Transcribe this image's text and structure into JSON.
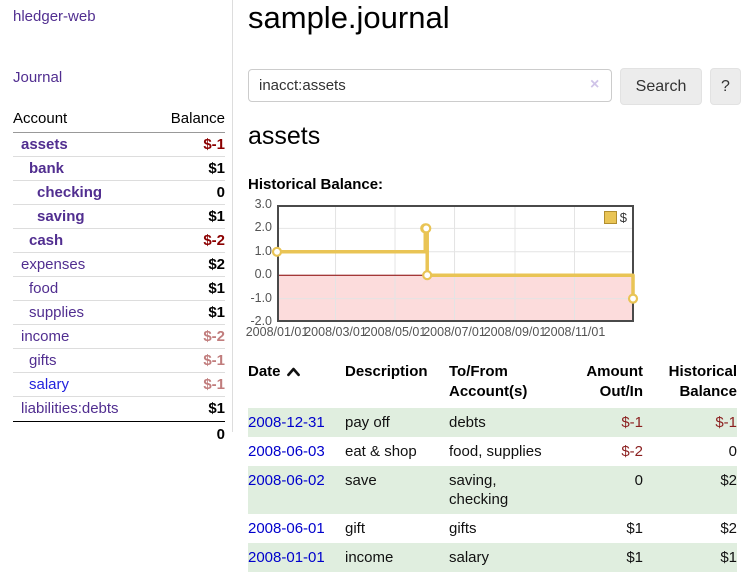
{
  "sidebar": {
    "brand": "hledger-web",
    "journal_link": "Journal",
    "accounts": {
      "account_header": "Account",
      "balance_header": "Balance",
      "rows": [
        {
          "name": "assets",
          "level": 1,
          "bold": true,
          "balance": "$-1"
        },
        {
          "name": "bank",
          "level": 2,
          "bold": true,
          "balance": "$1"
        },
        {
          "name": "checking",
          "level": 3,
          "bold": true,
          "balance": "0"
        },
        {
          "name": "saving",
          "level": 3,
          "bold": true,
          "balance": "$1"
        },
        {
          "name": "cash",
          "level": 2,
          "bold": true,
          "balance": "$-2"
        },
        {
          "name": "expenses",
          "level": 1,
          "bold": false,
          "balance": "$2"
        },
        {
          "name": "food",
          "level": 2,
          "bold": false,
          "balance": "$1"
        },
        {
          "name": "supplies",
          "level": 2,
          "bold": false,
          "balance": "$1"
        },
        {
          "name": "income",
          "level": 1,
          "bold": false,
          "balance": "$-2"
        },
        {
          "name": "gifts",
          "level": 2,
          "bold": false,
          "balance": "$-1"
        },
        {
          "name": "salary",
          "level": 2,
          "bold": false,
          "balance": "$-1",
          "link": "unvisited"
        },
        {
          "name": "liabilities:debts",
          "level": 1,
          "bold": false,
          "balance": "$1"
        }
      ],
      "total": "0"
    }
  },
  "main": {
    "title": "sample.journal",
    "search": {
      "value": "inacct:assets",
      "clear_icon": "×",
      "search_button": "Search",
      "help_button": "?"
    },
    "account_heading": "assets",
    "chart_title": "Historical Balance:"
  },
  "chart_data": {
    "type": "line",
    "title": "Historical Balance:",
    "x_range": [
      "2008-01-01",
      "2009-01-01"
    ],
    "y_range": [
      -2,
      3
    ],
    "grid": true,
    "legend_position": "top-right",
    "y_ticks": [
      {
        "value": 3,
        "label": "3.0"
      },
      {
        "value": 2,
        "label": "2.0"
      },
      {
        "value": 1,
        "label": "1.0"
      },
      {
        "value": 0,
        "label": "0.0"
      },
      {
        "value": -1,
        "label": "-1.0"
      },
      {
        "value": -2,
        "label": "-2.0"
      }
    ],
    "x_ticks": [
      {
        "date": "2008-01-01",
        "label": "2008/01/01"
      },
      {
        "date": "2008-03-01",
        "label": "2008/03/01"
      },
      {
        "date": "2008-05-01",
        "label": "2008/05/01"
      },
      {
        "date": "2008-07-01",
        "label": "2008/07/01"
      },
      {
        "date": "2008-09-01",
        "label": "2008/09/01"
      },
      {
        "date": "2008-11-01",
        "label": "2008/11/01"
      }
    ],
    "series": [
      {
        "name": "$",
        "color": "#e9c455",
        "steps": true,
        "marker": "circle",
        "points": [
          [
            "2008-01-01",
            1
          ],
          [
            "2008-06-01",
            2
          ],
          [
            "2008-06-02",
            2
          ],
          [
            "2008-06-03",
            0
          ],
          [
            "2008-12-31",
            -1
          ]
        ]
      }
    ],
    "negative_region_color": "#fcdcdc",
    "zero_line_color": "#8b0000"
  },
  "register": {
    "headers": [
      "Date",
      "Description",
      "To/From Account(s)",
      "Amount Out/In",
      "Historical Balance"
    ],
    "sort": {
      "column": "Date",
      "direction": "ascending"
    },
    "rows": [
      {
        "date": "2008-12-31",
        "description": "pay off",
        "accounts": "debts",
        "amount": "$-1",
        "balance": "$-1"
      },
      {
        "date": "2008-06-03",
        "description": "eat & shop",
        "accounts": "food, supplies",
        "amount": "$-2",
        "balance": "0"
      },
      {
        "date": "2008-06-02",
        "description": "save",
        "accounts": "saving, checking",
        "amount": "0",
        "balance": "$2"
      },
      {
        "date": "2008-06-01",
        "description": "gift",
        "accounts": "gifts",
        "amount": "$1",
        "balance": "$2"
      },
      {
        "date": "2008-01-01",
        "description": "income",
        "accounts": "salary",
        "amount": "$1",
        "balance": "$1"
      }
    ]
  },
  "colors": {
    "link_purple": "#512e90",
    "link_blue_unvisited": "#2222dd",
    "date_link_blue": "#0000cc",
    "negative_strong": "#8b0000",
    "negative_dim": "#c17d7d",
    "table_negative": "#8b1f1f",
    "row_stripe_green": "#e0eedf",
    "chart_line_gold": "#e9c455",
    "chart_negative_pink": "#fcdcdc",
    "chart_zero_line": "#8b0000",
    "button_gray": "#ececec"
  }
}
